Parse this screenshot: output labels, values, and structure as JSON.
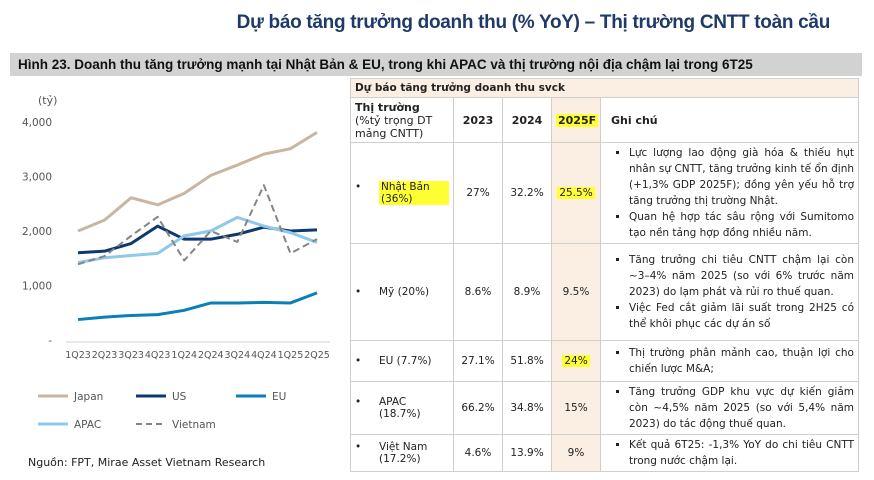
{
  "title": "Dự báo tăng trưởng doanh thu (% YoY) – Thị trường CNTT toàn cầu",
  "figure_caption": "Hình 23. Doanh thu tăng trưởng mạnh tại Nhật Bản & EU, trong khi APAC và thị trường nội địa chậm lại trong 6T25",
  "source": "Nguồn: FPT, Mirae Asset Vietnam Research",
  "chart_data": {
    "type": "line",
    "ylabel": "(tỷ)",
    "ylim": [
      0,
      4000
    ],
    "yticks": [
      "-",
      "1,000",
      "2,000",
      "3,000",
      "4,000"
    ],
    "categories": [
      "1Q23",
      "2Q23",
      "3Q23",
      "4Q23",
      "1Q24",
      "2Q24",
      "3Q24",
      "4Q24",
      "1Q25",
      "2Q25"
    ],
    "grid": false,
    "legend_placement": "bottom",
    "series": [
      {
        "name": "Japan",
        "color": "#c9b6a2",
        "dash": false,
        "values": [
          2000,
          2200,
          2610,
          2480,
          2690,
          3020,
          3210,
          3410,
          3510,
          3810
        ]
      },
      {
        "name": "US",
        "color": "#0d3a6e",
        "dash": false,
        "values": [
          1600,
          1630,
          1770,
          2090,
          1850,
          1850,
          1940,
          2070,
          2000,
          2020
        ]
      },
      {
        "name": "EU",
        "color": "#0a80b6",
        "dash": false,
        "values": [
          375,
          420,
          450,
          465,
          545,
          680,
          680,
          690,
          680,
          865
        ]
      },
      {
        "name": "APAC",
        "color": "#8ec8ea",
        "dash": false,
        "values": [
          1420,
          1510,
          1550,
          1590,
          1910,
          2000,
          2250,
          2090,
          1970,
          1790
        ]
      },
      {
        "name": "Vietnam",
        "color": "#858585",
        "dash": true,
        "values": [
          1390,
          1540,
          1910,
          2260,
          1460,
          2000,
          1800,
          2840,
          1590,
          1850
        ]
      }
    ]
  },
  "table": {
    "caption": "Dự báo tăng trưởng doanh thu svck",
    "headers": {
      "market": "Thị trường",
      "market_sub": "(%tỷ trọng DT mảng CNTT)",
      "y2023": "2023",
      "y2024": "2024",
      "y2025": "2025F",
      "notes": "Ghi chú"
    },
    "rows": [
      {
        "market": "Nhật Bản (36%)",
        "highlight_market": true,
        "v2023": "27%",
        "v2024": "32.2%",
        "v2025": "25.5%",
        "highlight_2025": true,
        "notes": [
          "Lực lượng lao động già hóa & thiếu hụt nhân sự CNTT, tăng trưởng kinh tế ổn định (+1,3% GDP 2025F); đồng yên yếu hỗ trợ tăng trưởng thị trường Nhật.",
          "Quan hệ hợp tác sâu rộng với Sumitomo tạo nền tảng hợp đồng nhiều năm."
        ]
      },
      {
        "market": "Mỹ (20%)",
        "v2023": "8.6%",
        "v2024": "8.9%",
        "v2025": "9.5%",
        "notes": [
          "Tăng trưởng chi tiêu CNTT chậm lại còn ~3–4% năm 2025 (so với 6% trước năm 2023) do lạm phát và rủi ro thuế quan.",
          "Việc Fed cắt giảm lãi suất trong 2H25 có thể khôi phục các dự án số"
        ]
      },
      {
        "market": "EU (7.7%)",
        "v2023": "27.1%",
        "v2024": "51.8%",
        "v2025": "24%",
        "highlight_2025": true,
        "notes": [
          "Thị trường phân mảnh cao, thuận lợi cho chiến lược M&A;"
        ]
      },
      {
        "market": "APAC (18.7%)",
        "v2023": "66.2%",
        "v2024": "34.8%",
        "v2025": "15%",
        "notes": [
          "Tăng trưởng GDP khu vực dự kiến giảm còn ~4,5% năm 2025 (so với 5,4% năm 2023) do tác động thuế quan."
        ]
      },
      {
        "market": "Việt Nam (17.2%)",
        "v2023": "4.6%",
        "v2024": "13.9%",
        "v2025": "9%",
        "notes": [
          "Kết quả 6T25: -1,3% YoY do chi tiêu CNTT trong nước chậm lại."
        ]
      }
    ]
  },
  "colors": {
    "title": "#1f3a68",
    "caption_bg": "#d2d2d2",
    "forecast_bg": "#fbeee2",
    "highlight": "#ffff33"
  }
}
